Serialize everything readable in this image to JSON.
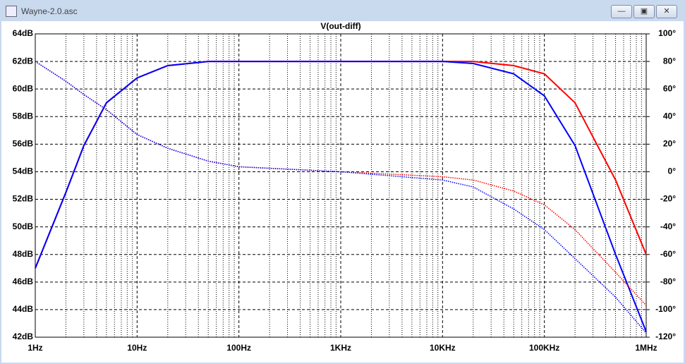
{
  "window": {
    "title": "Wayne-2.0.asc"
  },
  "chart_data": {
    "type": "line",
    "title": "V(out-diff)",
    "title_color": "#ff0000",
    "x": [
      1,
      2,
      3,
      5,
      10,
      20,
      50,
      100,
      1000,
      10000,
      20000,
      50000,
      100000,
      200000,
      500000,
      1000000
    ],
    "xlim": [
      1,
      1000000
    ],
    "xlog": true,
    "xticks": [
      {
        "value": 1,
        "label": "1Hz"
      },
      {
        "value": 10,
        "label": "10Hz"
      },
      {
        "value": 100,
        "label": "100Hz"
      },
      {
        "value": 1000,
        "label": "1KHz"
      },
      {
        "value": 10000,
        "label": "10KHz"
      },
      {
        "value": 100000,
        "label": "100KHz"
      },
      {
        "value": 1000000,
        "label": "1MHz"
      }
    ],
    "ylim": [
      42,
      64
    ],
    "yticks": [
      {
        "value": 42,
        "label": "42dB"
      },
      {
        "value": 44,
        "label": "44dB"
      },
      {
        "value": 46,
        "label": "46dB"
      },
      {
        "value": 48,
        "label": "48dB"
      },
      {
        "value": 50,
        "label": "50dB"
      },
      {
        "value": 52,
        "label": "52dB"
      },
      {
        "value": 54,
        "label": "54dB"
      },
      {
        "value": 56,
        "label": "56dB"
      },
      {
        "value": 58,
        "label": "58dB"
      },
      {
        "value": 60,
        "label": "60dB"
      },
      {
        "value": 62,
        "label": "62dB"
      },
      {
        "value": 64,
        "label": "64dB"
      }
    ],
    "y2lim": [
      -120,
      100
    ],
    "y2ticks": [
      {
        "value": -120,
        "label": "-120°"
      },
      {
        "value": -100,
        "label": "-100°"
      },
      {
        "value": -80,
        "label": "-80°"
      },
      {
        "value": -60,
        "label": "-60°"
      },
      {
        "value": -40,
        "label": "-40°"
      },
      {
        "value": -20,
        "label": "-20°"
      },
      {
        "value": 0,
        "label": "0°"
      },
      {
        "value": 20,
        "label": "20°"
      },
      {
        "value": 40,
        "label": "40°"
      },
      {
        "value": 60,
        "label": "60°"
      },
      {
        "value": 80,
        "label": "80°"
      },
      {
        "value": 100,
        "label": "100°"
      }
    ],
    "grid": true,
    "series": [
      {
        "color": "#ff0000",
        "dash": false,
        "values": [
          47,
          52.5,
          55.9,
          59,
          60.8,
          61.7,
          62,
          62,
          62,
          62,
          62,
          61.7,
          61.1,
          59,
          53.4,
          48
        ]
      },
      {
        "color": "#0000ff",
        "dash": false,
        "values": [
          47,
          52.5,
          55.9,
          59,
          60.8,
          61.7,
          62,
          62,
          62,
          62,
          61.85,
          61.1,
          59.5,
          55.9,
          48,
          42.4
        ]
      },
      {
        "color": "#ff0000",
        "dash": true,
        "axis": "y2",
        "values": [
          80,
          65.6,
          56,
          45,
          27,
          17,
          7.7,
          3.6,
          0,
          -3.6,
          -6,
          -14,
          -24,
          -42,
          -73,
          -97
        ]
      },
      {
        "color": "#0000ff",
        "dash": true,
        "axis": "y2",
        "values": [
          80,
          65.6,
          56,
          45,
          27,
          17,
          7.7,
          3.6,
          0,
          -6,
          -11,
          -27,
          -42,
          -63,
          -91,
          -117
        ]
      }
    ]
  }
}
